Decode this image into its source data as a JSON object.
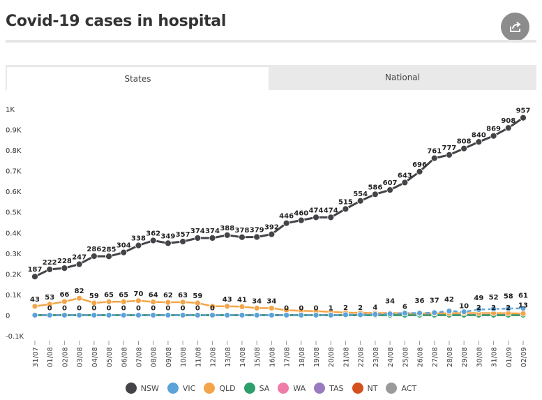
{
  "page": {
    "title": "Covid-19 cases in hospital"
  },
  "share": {
    "icon": "share-icon"
  },
  "tabs": [
    {
      "label": "States",
      "active": true
    },
    {
      "label": "National",
      "active": false
    }
  ],
  "chart_data": {
    "type": "line",
    "title": "Covid-19 cases in hospital",
    "ylim": [
      -100,
      1000
    ],
    "yticks": [
      -100,
      0,
      100,
      200,
      300,
      400,
      500,
      600,
      700,
      800,
      900,
      1000
    ],
    "ytick_labels": [
      "-0.1K",
      "0",
      "0.1K",
      "0.2K",
      "0.3K",
      "0.4K",
      "0.5K",
      "0.6K",
      "0.7K",
      "0.8K",
      "0.9K",
      "1K"
    ],
    "categories": [
      "31/07",
      "01/08",
      "02/08",
      "03/08",
      "04/08",
      "05/08",
      "06/08",
      "07/08",
      "08/08",
      "09/08",
      "10/08",
      "11/08",
      "12/08",
      "13/08",
      "14/08",
      "15/08",
      "16/08",
      "17/08",
      "18/08",
      "19/08",
      "20/08",
      "21/08",
      "22/08",
      "23/08",
      "24/08",
      "25/08",
      "26/08",
      "27/08",
      "28/08",
      "29/08",
      "30/08",
      "31/08",
      "01/09",
      "02/09"
    ],
    "series": [
      {
        "name": "NSW",
        "color": "#434348",
        "dashed": false,
        "values": [
          187,
          222,
          228,
          247,
          286,
          285,
          304,
          338,
          362,
          349,
          357,
          374,
          374,
          388,
          378,
          379,
          392,
          446,
          460,
          474,
          474,
          515,
          554,
          586,
          607,
          643,
          696,
          761,
          777,
          808,
          840,
          869,
          908,
          957
        ],
        "labels": [
          "187",
          "222",
          "228",
          "247",
          "286",
          "285",
          "304",
          "338",
          "362",
          "349",
          "357",
          "374",
          "374",
          "388",
          "378",
          "379",
          "392",
          "446",
          "460",
          "474",
          "474",
          "515",
          "554",
          "586",
          "607",
          "643",
          "696",
          "761",
          "777",
          "808",
          "840",
          "869",
          "908",
          "957"
        ]
      },
      {
        "name": "VIC",
        "color": "#5ba3d9",
        "dashed": true,
        "values": [
          0,
          0,
          0,
          0,
          0,
          0,
          0,
          0,
          0,
          0,
          0,
          0,
          0,
          0,
          0,
          0,
          0,
          0,
          0,
          0,
          0,
          2,
          2,
          4,
          6,
          10,
          10,
          12,
          20,
          16,
          27,
          30,
          32,
          33
        ],
        "labels": [
          "",
          "",
          "",
          "",
          "",
          "",
          "",
          "",
          "",
          "",
          "",
          "",
          "",
          "",
          "",
          "",
          "",
          "",
          "",
          "",
          "",
          "",
          "",
          "",
          "",
          "",
          "",
          "",
          "",
          "",
          "",
          "",
          "",
          ""
        ]
      },
      {
        "name": "QLD",
        "color": "#f4a54a",
        "dashed": false,
        "values": [
          43,
          53,
          66,
          82,
          59,
          65,
          65,
          70,
          64,
          62,
          63,
          59,
          43,
          43,
          41,
          34,
          34,
          24,
          21,
          19,
          16,
          12,
          11,
          10,
          10,
          9,
          8,
          9,
          9,
          10,
          10,
          10,
          9,
          8
        ],
        "labels": [
          "43",
          "53",
          "66",
          "82",
          "59",
          "65",
          "65",
          "70",
          "64",
          "62",
          "63",
          "59",
          "",
          "43",
          "41",
          "34",
          "34",
          "",
          "",
          "",
          "",
          "",
          "",
          "",
          "",
          "",
          "",
          "",
          "",
          "",
          "",
          "",
          "",
          ""
        ]
      },
      {
        "name": "SA",
        "color": "#2e9e6b",
        "dashed": false,
        "values": [
          0,
          0,
          0,
          0,
          0,
          0,
          0,
          0,
          0,
          0,
          0,
          0,
          0,
          0,
          0,
          0,
          0,
          0,
          0,
          0,
          0,
          0,
          0,
          0,
          0,
          0,
          0,
          0,
          0,
          0,
          0,
          0,
          0,
          0
        ],
        "labels": [
          "",
          "",
          "",
          "",
          "",
          "",
          "",
          "",
          "",
          "",
          "",
          "",
          "",
          "",
          "",
          "",
          "",
          "",
          "",
          "",
          "",
          "",
          "",
          "",
          "",
          "",
          "",
          "",
          "",
          "",
          "",
          "",
          "",
          ""
        ]
      },
      {
        "name": "WA",
        "color": "#ef7ca8",
        "dashed": false,
        "values": [
          0,
          0,
          0,
          0,
          0,
          0,
          0,
          0,
          0,
          0,
          0,
          0,
          0,
          0,
          0,
          0,
          0,
          0,
          0,
          0,
          0,
          0,
          0,
          0,
          0,
          0,
          0,
          0,
          0,
          0,
          0,
          0,
          0,
          0
        ],
        "labels": [
          "",
          "",
          "",
          "",
          "",
          "",
          "",
          "",
          "",
          "",
          "",
          "",
          "",
          "",
          "",
          "",
          "",
          "",
          "",
          "",
          "",
          "",
          "",
          "",
          "",
          "",
          "",
          "",
          "",
          "",
          "",
          "",
          "",
          ""
        ]
      },
      {
        "name": "TAS",
        "color": "#9b7bc0",
        "dashed": false,
        "values": [
          0,
          0,
          0,
          0,
          0,
          0,
          0,
          0,
          0,
          0,
          0,
          0,
          0,
          0,
          0,
          0,
          0,
          0,
          0,
          0,
          0,
          0,
          0,
          0,
          0,
          0,
          0,
          0,
          0,
          0,
          0,
          0,
          0,
          0
        ],
        "labels": [
          "",
          "",
          "",
          "",
          "",
          "",
          "",
          "",
          "",
          "",
          "",
          "",
          "",
          "",
          "",
          "",
          "",
          "",
          "",
          "",
          "",
          "",
          "",
          "",
          "",
          "",
          "",
          "",
          "",
          "",
          "",
          "",
          "",
          ""
        ]
      },
      {
        "name": "NT",
        "color": "#d4501f",
        "dashed": false,
        "values": [
          0,
          0,
          0,
          0,
          0,
          0,
          0,
          0,
          0,
          0,
          0,
          0,
          0,
          0,
          0,
          0,
          0,
          0,
          0,
          0,
          0,
          0,
          0,
          0,
          0,
          0,
          0,
          0,
          0,
          0,
          0,
          0,
          0,
          0
        ],
        "labels": [
          "",
          "",
          "",
          "",
          "",
          "",
          "",
          "",
          "",
          "",
          "",
          "",
          "",
          "",
          "",
          "",
          "",
          "",
          "",
          "",
          "",
          "",
          "",
          "",
          "",
          "",
          "",
          "",
          "",
          "",
          "",
          "",
          "",
          ""
        ]
      },
      {
        "name": "ACT",
        "color": "#9a9a9a",
        "dashed": false,
        "values": [
          0,
          0,
          0,
          0,
          0,
          0,
          0,
          0,
          0,
          0,
          0,
          0,
          0,
          0,
          0,
          0,
          0,
          0,
          0,
          0,
          0,
          0,
          0,
          0,
          0,
          0,
          0,
          0,
          0,
          0,
          0,
          0,
          0,
          0
        ],
        "labels": [
          "",
          "",
          "",
          "",
          "",
          "",
          "",
          "",
          "",
          "",
          "",
          "",
          "",
          "",
          "",
          "",
          "",
          "",
          "",
          "",
          "",
          "",
          "",
          "",
          "",
          "",
          "",
          "",
          "",
          "",
          "",
          "",
          "",
          ""
        ]
      }
    ],
    "annotations": [
      {
        "x": "01/08",
        "y": 0,
        "text": "0"
      },
      {
        "x": "02/08",
        "y": 0,
        "text": "0"
      },
      {
        "x": "03/08",
        "y": 0,
        "text": "0"
      },
      {
        "x": "04/08",
        "y": 0,
        "text": "0"
      },
      {
        "x": "05/08",
        "y": 0,
        "text": "0"
      },
      {
        "x": "06/08",
        "y": 0,
        "text": "0"
      },
      {
        "x": "07/08",
        "y": 0,
        "text": "0"
      },
      {
        "x": "08/08",
        "y": 0,
        "text": "0"
      },
      {
        "x": "09/08",
        "y": 0,
        "text": "0"
      },
      {
        "x": "10/08",
        "y": 0,
        "text": "0"
      },
      {
        "x": "11/08",
        "y": 0,
        "text": "0"
      },
      {
        "x": "12/08",
        "y": 0,
        "text": "0"
      },
      {
        "x": "17/08",
        "y": 0,
        "text": "0"
      },
      {
        "x": "18/08",
        "y": 0,
        "text": "0"
      },
      {
        "x": "19/08",
        "y": 0,
        "text": "0"
      },
      {
        "x": "20/08",
        "y": 0,
        "text": "1"
      },
      {
        "x": "21/08",
        "y": 2,
        "text": "2"
      },
      {
        "x": "22/08",
        "y": 2,
        "text": "2"
      },
      {
        "x": "23/08",
        "y": 4,
        "text": "4"
      },
      {
        "x": "24/08",
        "y": 34,
        "text": "34"
      },
      {
        "x": "25/08",
        "y": 6,
        "text": "6"
      },
      {
        "x": "26/08",
        "y": 36,
        "text": "36"
      },
      {
        "x": "27/08",
        "y": 37,
        "text": "37"
      },
      {
        "x": "28/08",
        "y": 42,
        "text": "42"
      },
      {
        "x": "29/08",
        "y": 10,
        "text": "10"
      },
      {
        "x": "30/08",
        "y": 49,
        "text": "49"
      },
      {
        "x": "30/08",
        "y": 2,
        "text": "2"
      },
      {
        "x": "31/08",
        "y": 52,
        "text": "52"
      },
      {
        "x": "31/08",
        "y": 2,
        "text": "2"
      },
      {
        "x": "01/09",
        "y": 58,
        "text": "58"
      },
      {
        "x": "01/09",
        "y": 2,
        "text": "2"
      },
      {
        "x": "02/09",
        "y": 61,
        "text": "61"
      },
      {
        "x": "02/09",
        "y": 13,
        "text": "13"
      }
    ],
    "legend": [
      "NSW",
      "VIC",
      "QLD",
      "SA",
      "WA",
      "TAS",
      "NT",
      "ACT"
    ],
    "legend_position": "bottom-center"
  }
}
